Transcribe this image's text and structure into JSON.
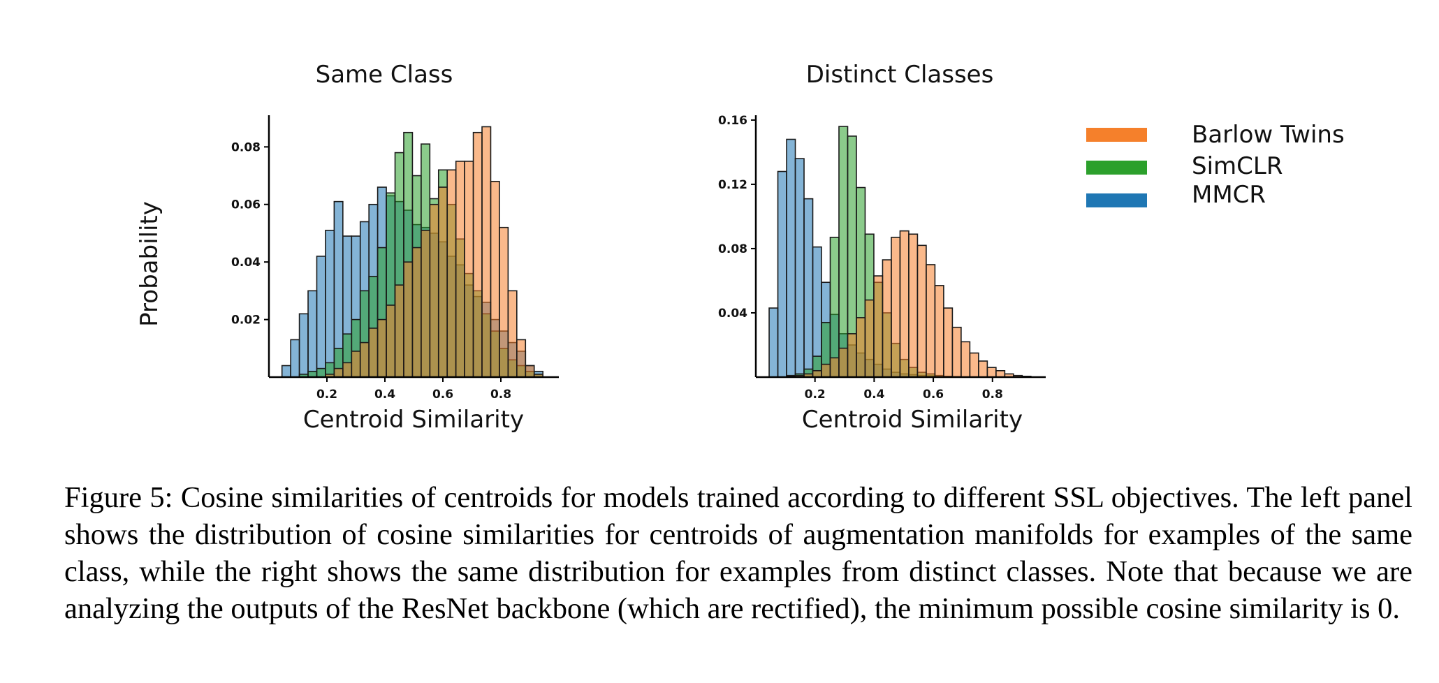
{
  "figure": {
    "ylabel": "Probability",
    "legend_placement": "right",
    "colors": {
      "Barlow Twins": "#f5802b",
      "SimCLR": "#2ca02c",
      "MMCR": "#1f77b4"
    },
    "caption": "Figure 5: Cosine similarities of centroids for models trained according to different SSL objectives. The left panel shows the distribution of cosine similarities for centroids of augmentation manifolds for examples of the same class, while the right shows the same distribution for examples from distinct classes. Note that because we are analyzing the outputs of the ResNet backbone (which are rectified), the minimum possible cosine similarity is 0."
  },
  "chart_data": [
    {
      "type": "histogram",
      "title": "Same Class",
      "xlabel": "Centroid Similarity",
      "ylabel": "Probability",
      "xlim": [
        0.0,
        1.0
      ],
      "ylim": [
        0,
        0.091
      ],
      "xticks": [
        0.2,
        0.4,
        0.6,
        0.8
      ],
      "xtick_labels": [
        "0.2",
        "0.4",
        "0.6",
        "0.8"
      ],
      "yticks": [
        0.02,
        0.04,
        0.06,
        0.08
      ],
      "ytick_labels": [
        "0.02",
        "0.04",
        "0.06",
        "0.08"
      ],
      "bin_start": 0.045,
      "bin_width": 0.03,
      "series": [
        {
          "name": "MMCR",
          "color": "#1f77b4",
          "values": [
            0.004,
            0.013,
            0.022,
            0.03,
            0.042,
            0.051,
            0.061,
            0.049,
            0.049,
            0.054,
            0.06,
            0.066,
            0.063,
            0.061,
            0.058,
            0.053,
            0.052,
            0.05,
            0.047,
            0.042,
            0.039,
            0.032,
            0.028,
            0.026,
            0.02,
            0.016,
            0.012,
            0.009,
            0.004,
            0.002
          ]
        },
        {
          "name": "SimCLR",
          "color": "#2ca02c",
          "values": [
            0,
            0,
            0.001,
            0.002,
            0.003,
            0.005,
            0.01,
            0.015,
            0.02,
            0.03,
            0.035,
            0.045,
            0.064,
            0.078,
            0.085,
            0.07,
            0.081,
            0.062,
            0.072,
            0.06,
            0.048,
            0.036,
            0.03,
            0.022,
            0.016,
            0.01,
            0.006,
            0.004,
            0.002,
            0.001
          ]
        },
        {
          "name": "Barlow Twins",
          "color": "#f5802b",
          "values": [
            0,
            0,
            0,
            0,
            0,
            0.001,
            0.003,
            0.005,
            0.009,
            0.012,
            0.017,
            0.02,
            0.025,
            0.032,
            0.04,
            0.045,
            0.051,
            0.06,
            0.066,
            0.072,
            0.075,
            0.075,
            0.085,
            0.087,
            0.068,
            0.052,
            0.03,
            0.013,
            0.004,
            0.001
          ]
        }
      ]
    },
    {
      "type": "histogram",
      "title": "Distinct Classes",
      "xlabel": "Centroid Similarity",
      "ylabel": "Probability",
      "xlim": [
        0.0,
        0.98
      ],
      "ylim": [
        0,
        0.163
      ],
      "xticks": [
        0.2,
        0.4,
        0.6,
        0.8
      ],
      "xtick_labels": [
        "0.2",
        "0.4",
        "0.6",
        "0.8"
      ],
      "yticks": [
        0.04,
        0.08,
        0.12,
        0.16
      ],
      "ytick_labels": [
        "0.04",
        "0.08",
        "0.12",
        "0.16"
      ],
      "bin_start": 0.045,
      "bin_width": 0.0295,
      "series": [
        {
          "name": "MMCR",
          "color": "#1f77b4",
          "values": [
            0.043,
            0.128,
            0.148,
            0.136,
            0.111,
            0.081,
            0.059,
            0.039,
            0.027,
            0.02,
            0.015,
            0.011,
            0.008,
            0.005,
            0.003,
            0.002,
            0.0015,
            0.001,
            0.0008,
            0.0005,
            0.0003,
            0.0002,
            0.0001,
            0,
            0,
            0,
            0,
            0,
            0,
            0
          ]
        },
        {
          "name": "SimCLR",
          "color": "#2ca02c",
          "values": [
            0,
            0,
            0.001,
            0.002,
            0.005,
            0.013,
            0.034,
            0.087,
            0.156,
            0.15,
            0.118,
            0.089,
            0.059,
            0.04,
            0.021,
            0.011,
            0.006,
            0.003,
            0.002,
            0.001,
            0.0005,
            0.0003,
            0.0001,
            0,
            0,
            0,
            0,
            0,
            0,
            0
          ]
        },
        {
          "name": "Barlow Twins",
          "color": "#f5802b",
          "values": [
            0,
            0,
            0.0005,
            0.001,
            0.002,
            0.004,
            0.008,
            0.012,
            0.018,
            0.027,
            0.037,
            0.048,
            0.063,
            0.073,
            0.087,
            0.091,
            0.089,
            0.082,
            0.07,
            0.057,
            0.043,
            0.031,
            0.022,
            0.015,
            0.01,
            0.006,
            0.004,
            0.002,
            0.001,
            0.0005
          ]
        }
      ]
    }
  ],
  "legend": [
    {
      "label": "Barlow Twins",
      "color": "#f5802b"
    },
    {
      "label": "SimCLR",
      "color": "#2ca02c"
    },
    {
      "label": "MMCR",
      "color": "#1f77b4"
    }
  ]
}
